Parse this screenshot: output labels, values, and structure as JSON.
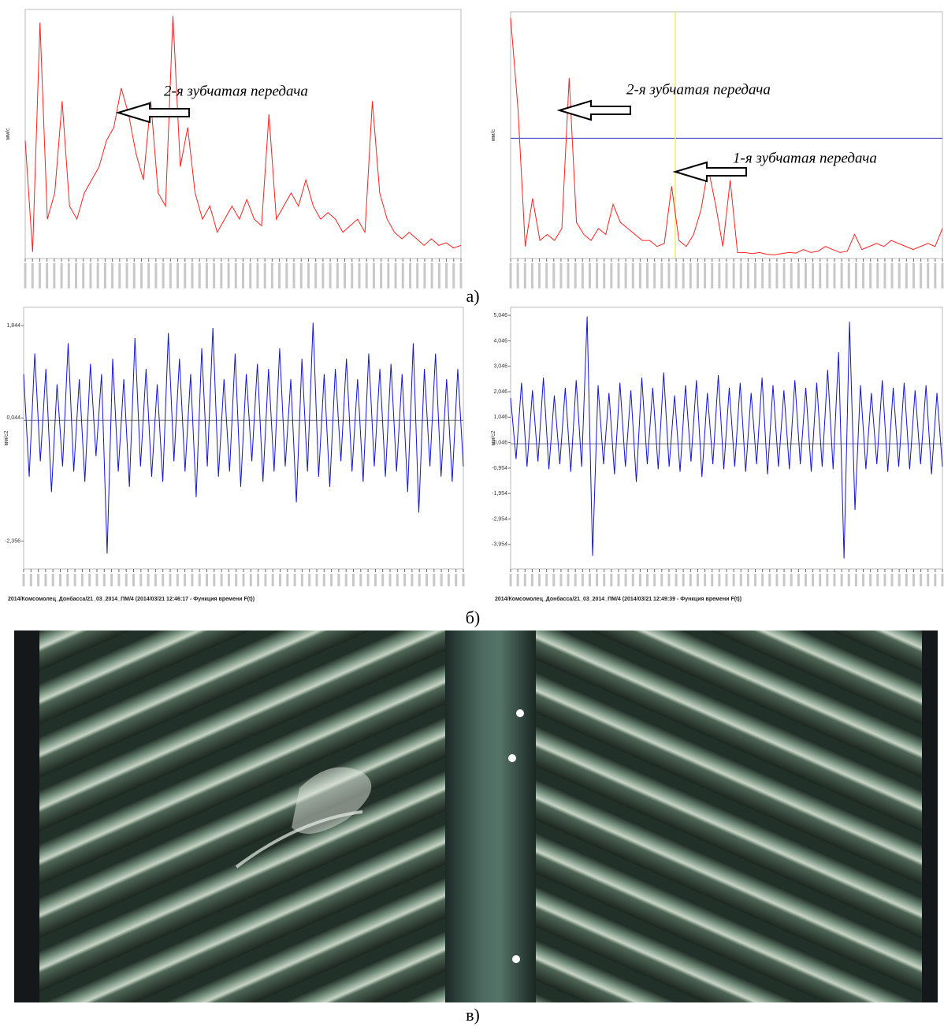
{
  "chart_data": [
    {
      "type": "line",
      "color": "#ff2020",
      "ylabel": "мм/с",
      "ylim": [
        0,
        0.19
      ],
      "annotations": [
        "2-я зубчатая передача"
      ],
      "values": [
        0.09,
        0.005,
        0.18,
        0.03,
        0.05,
        0.12,
        0.04,
        0.03,
        0.05,
        0.06,
        0.07,
        0.09,
        0.1,
        0.13,
        0.11,
        0.08,
        0.06,
        0.12,
        0.05,
        0.04,
        0.185,
        0.07,
        0.1,
        0.05,
        0.03,
        0.04,
        0.02,
        0.03,
        0.04,
        0.03,
        0.045,
        0.03,
        0.025,
        0.11,
        0.03,
        0.04,
        0.05,
        0.04,
        0.06,
        0.04,
        0.03,
        0.035,
        0.03,
        0.02,
        0.025,
        0.03,
        0.02,
        0.12,
        0.05,
        0.03,
        0.02,
        0.015,
        0.02,
        0.015,
        0.01,
        0.015,
        0.01,
        0.012,
        0.008,
        0.01
      ]
    },
    {
      "type": "line",
      "color": "#ff2020",
      "ylabel": "мм/с",
      "ylim": [
        0,
        0.41
      ],
      "hline": 0.2,
      "hline_color": "#3030c0",
      "vline": 22.5,
      "vline_color": "#f0f060",
      "annotations": [
        "2-я зубчатая передача",
        "1-я зубчатая передача"
      ],
      "values": [
        0.4,
        0.25,
        0.02,
        0.1,
        0.03,
        0.04,
        0.03,
        0.05,
        0.3,
        0.06,
        0.04,
        0.03,
        0.05,
        0.04,
        0.09,
        0.06,
        0.05,
        0.04,
        0.03,
        0.03,
        0.02,
        0.025,
        0.12,
        0.03,
        0.02,
        0.04,
        0.08,
        0.15,
        0.09,
        0.02,
        0.13,
        0.01,
        0.01,
        0.008,
        0.01,
        0.007,
        0.006,
        0.008,
        0.01,
        0.009,
        0.015,
        0.01,
        0.012,
        0.02,
        0.015,
        0.01,
        0.012,
        0.04,
        0.015,
        0.02,
        0.025,
        0.02,
        0.03,
        0.025,
        0.02,
        0.015,
        0.02,
        0.025,
        0.02,
        0.05
      ]
    },
    {
      "type": "line",
      "color": "#1414d8",
      "ylabel": "мм/с2",
      "ylim": [
        -2.9,
        2.2
      ],
      "yticks": [
        {
          "value": 1.844,
          "label": "1,844"
        },
        {
          "value": 0.044,
          "label": "0,044"
        },
        {
          "value": -2.356,
          "label": "-2,356"
        }
      ],
      "caption": "2014/Комсомолец_Донбасса/21_03_2014_ПМ/4 (2014/03/21 12:46:17 - Функция времени F(t))",
      "values": [
        0.9,
        -1.1,
        1.3,
        -0.8,
        1.0,
        -1.4,
        0.7,
        -0.9,
        1.5,
        -1.0,
        0.8,
        -1.2,
        1.1,
        -0.7,
        0.9,
        -2.6,
        1.2,
        -1.0,
        0.8,
        -1.3,
        1.6,
        -0.9,
        1.0,
        -1.1,
        0.7,
        -1.2,
        1.7,
        -0.8,
        1.2,
        -1.0,
        0.9,
        -1.5,
        1.4,
        -0.9,
        1.8,
        -1.1,
        0.8,
        -1.0,
        1.3,
        -1.3,
        0.9,
        -0.8,
        1.1,
        -1.2,
        1.0,
        -1.0,
        1.4,
        -0.9,
        0.8,
        -1.6,
        1.2,
        -1.0,
        1.9,
        -1.1,
        0.9,
        -1.3,
        1.0,
        -0.8,
        1.2,
        -1.0,
        0.8,
        -1.2,
        1.3,
        -0.9,
        1.0,
        -1.1,
        1.1,
        -1.0,
        0.9,
        -1.4,
        1.5,
        -1.8,
        1.0,
        -0.9,
        1.3,
        -1.1,
        0.8,
        -1.2,
        1.0,
        -0.9
      ]
    },
    {
      "type": "line",
      "color": "#1414d8",
      "ylabel": "мм/с2",
      "ylim": [
        -4.92,
        5.36
      ],
      "yticks": [
        {
          "value": 5.046,
          "label": "5,046"
        },
        {
          "value": 4.046,
          "label": "4,046"
        },
        {
          "value": 3.046,
          "label": "3,046"
        },
        {
          "value": 2.046,
          "label": "2,046"
        },
        {
          "value": 1.046,
          "label": "1,046"
        },
        {
          "value": 0.046,
          "label": "0,046"
        },
        {
          "value": -0.954,
          "label": "-0,954"
        },
        {
          "value": -1.954,
          "label": "-1,954"
        },
        {
          "value": -2.954,
          "label": "-2,954"
        },
        {
          "value": -3.954,
          "label": "-3,954"
        }
      ],
      "caption": "2014/Комсомолец_Донбасса/21_03_2014_ПМ/4 (2014/03/21 12:49:39 - Функция времени F(t))",
      "values": [
        1.8,
        -0.6,
        2.4,
        -0.9,
        2.1,
        -0.7,
        2.6,
        -1.0,
        1.9,
        -0.8,
        2.2,
        -1.1,
        2.5,
        -0.9,
        5.0,
        -4.4,
        2.3,
        -0.8,
        2.0,
        -1.2,
        2.4,
        -0.9,
        2.1,
        -1.5,
        2.6,
        -0.8,
        2.2,
        -1.0,
        2.8,
        -0.9,
        1.9,
        -1.1,
        2.3,
        -0.7,
        2.5,
        -1.3,
        2.0,
        -0.8,
        2.7,
        -1.0,
        2.2,
        -0.9,
        2.4,
        -1.1,
        2.0,
        -0.8,
        2.6,
        -1.2,
        2.3,
        -0.9,
        2.1,
        -1.0,
        2.5,
        -0.8,
        2.2,
        -1.1,
        2.4,
        -0.9,
        2.9,
        -1.0,
        3.6,
        -4.5,
        4.8,
        -2.6,
        2.3,
        -1.0,
        2.0,
        -0.8,
        2.5,
        -1.1,
        2.2,
        -0.9,
        2.4,
        -1.0,
        2.1,
        -0.8,
        2.3,
        -1.2,
        2.0,
        -0.9
      ]
    }
  ],
  "panel_labels": [
    "а)",
    "б)",
    "в)"
  ]
}
